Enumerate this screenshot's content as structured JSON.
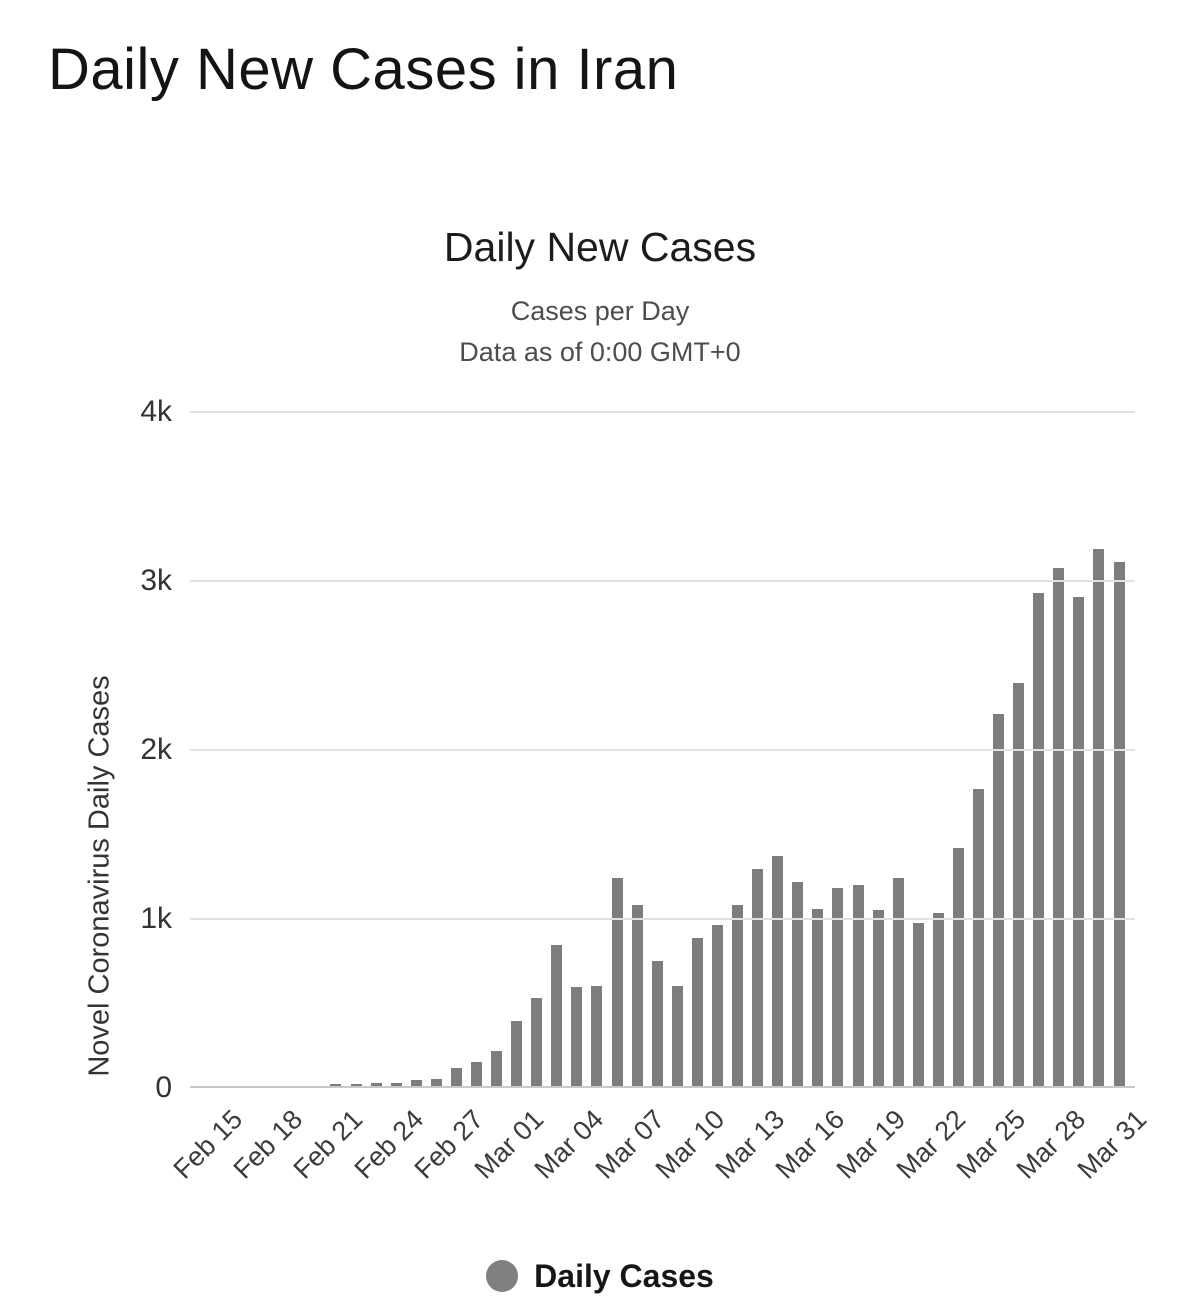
{
  "page": {
    "title": "Daily New Cases in Iran"
  },
  "chart": {
    "title": "Daily New Cases",
    "subtitle_line1": "Cases per Day",
    "subtitle_line2": "Data as of 0:00 GMT+0",
    "y_axis_title": "Novel Coronavirus Daily Cases",
    "legend_label": "Daily Cases",
    "colors": {
      "bar": "#7d7d7d",
      "gridline": "#e2e2e2",
      "axis_line": "#c9c9c9",
      "legend_dot": "#808080",
      "title_text": "#141414",
      "subtitle_text": "#4d4d4d"
    }
  },
  "chart_data": {
    "type": "bar",
    "title": "Daily New Cases",
    "subtitle": [
      "Cases per Day",
      "Data as of 0:00 GMT+0"
    ],
    "xlabel": "",
    "ylabel": "Novel Coronavirus Daily Cases",
    "ylim": [
      0,
      4000
    ],
    "grid": "horizontal",
    "legend": {
      "position": "bottom",
      "entries": [
        "Daily Cases"
      ]
    },
    "yticks": [
      {
        "value": 0,
        "label": "0"
      },
      {
        "value": 1000,
        "label": "1k"
      },
      {
        "value": 2000,
        "label": "2k"
      },
      {
        "value": 3000,
        "label": "3k"
      },
      {
        "value": 4000,
        "label": "4k"
      }
    ],
    "xtick_every": 3,
    "xtick_labels": [
      "Feb 15",
      "Feb 18",
      "Feb 21",
      "Feb 24",
      "Feb 27",
      "Mar 01",
      "Mar 04",
      "Mar 07",
      "Mar 10",
      "Mar 13",
      "Mar 16",
      "Mar 19",
      "Mar 22",
      "Mar 25",
      "Mar 28",
      "Mar 31"
    ],
    "categories": [
      "Feb 15",
      "Feb 16",
      "Feb 17",
      "Feb 18",
      "Feb 19",
      "Feb 20",
      "Feb 21",
      "Feb 22",
      "Feb 23",
      "Feb 24",
      "Feb 25",
      "Feb 26",
      "Feb 27",
      "Feb 28",
      "Feb 29",
      "Mar 01",
      "Mar 02",
      "Mar 03",
      "Mar 04",
      "Mar 05",
      "Mar 06",
      "Mar 07",
      "Mar 08",
      "Mar 09",
      "Mar 10",
      "Mar 11",
      "Mar 12",
      "Mar 13",
      "Mar 14",
      "Mar 15",
      "Mar 16",
      "Mar 17",
      "Mar 18",
      "Mar 19",
      "Mar 20",
      "Mar 21",
      "Mar 22",
      "Mar 23",
      "Mar 24",
      "Mar 25",
      "Mar 26",
      "Mar 27",
      "Mar 28",
      "Mar 29",
      "Mar 30",
      "Mar 31"
    ],
    "values": [
      0,
      0,
      0,
      0,
      2,
      3,
      13,
      10,
      15,
      18,
      34,
      44,
      106,
      143,
      205,
      385,
      523,
      835,
      586,
      591,
      1234,
      1076,
      743,
      595,
      881,
      958,
      1075,
      1289,
      1365,
      1209,
      1053,
      1178,
      1192,
      1046,
      1237,
      966,
      1028,
      1411,
      1762,
      2206,
      2389,
      2926,
      3076,
      2901,
      3186,
      3110
    ],
    "series": [
      {
        "name": "Daily Cases",
        "color": "#7d7d7d"
      }
    ]
  }
}
